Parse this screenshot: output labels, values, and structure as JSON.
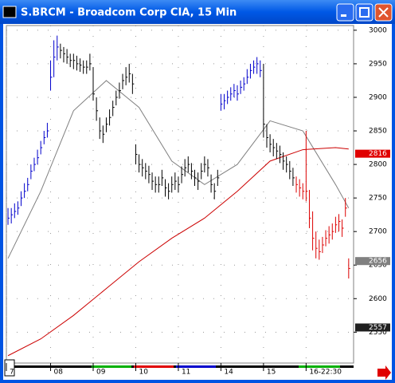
{
  "window": {
    "title": "S.BRCM - Broadcom Corp CIA, 15 Min"
  },
  "chart_data": {
    "type": "ohlc",
    "xlim": [
      -0.5,
      105.5
    ],
    "ylim": [
      2504,
      3007
    ],
    "yticks": [
      3000,
      2950,
      2900,
      2850,
      2800,
      2750,
      2700,
      2650,
      2600,
      2550
    ],
    "xticks": [
      {
        "value": -0.5,
        "label": "7"
      },
      {
        "value": 13,
        "label": "08"
      },
      {
        "value": 26,
        "label": "09"
      },
      {
        "value": 39,
        "label": "10"
      },
      {
        "value": 52,
        "label": "11"
      },
      {
        "value": 65,
        "label": "14"
      },
      {
        "value": 78,
        "label": "15"
      },
      {
        "value": 91,
        "label": "16-22:30"
      }
    ],
    "grid": true,
    "series": [
      {
        "color": "#0000cc",
        "x": [
          0,
          1,
          2,
          3,
          4,
          5,
          6,
          7,
          8,
          9,
          10,
          11,
          12,
          13,
          14,
          15,
          65,
          66,
          67,
          68,
          69,
          70,
          71,
          72,
          73,
          74,
          75,
          76,
          77
        ],
        "high": [
          2735,
          2735,
          2742,
          2745,
          2760,
          2772,
          2780,
          2800,
          2810,
          2822,
          2835,
          2850,
          2862,
          2955,
          2985,
          2992,
          2905,
          2905,
          2910,
          2915,
          2920,
          2918,
          2925,
          2930,
          2942,
          2950,
          2955,
          2960,
          2955
        ],
        "low": [
          2710,
          2712,
          2720,
          2725,
          2738,
          2750,
          2760,
          2778,
          2790,
          2800,
          2815,
          2830,
          2840,
          2910,
          2930,
          2955,
          2880,
          2882,
          2890,
          2895,
          2900,
          2895,
          2905,
          2910,
          2920,
          2928,
          2935,
          2935,
          2930
        ],
        "close": [
          2720,
          2725,
          2730,
          2735,
          2750,
          2760,
          2770,
          2790,
          2800,
          2810,
          2825,
          2840,
          2850,
          2930,
          2960,
          2975,
          2890,
          2895,
          2900,
          2905,
          2910,
          2905,
          2915,
          2920,
          2930,
          2940,
          2945,
          2950,
          2940
        ]
      },
      {
        "color": "#000000",
        "x": [
          16,
          17,
          18,
          19,
          20,
          21,
          22,
          23,
          24,
          25,
          26,
          27,
          28,
          29,
          30,
          31,
          32,
          33,
          34,
          35,
          36,
          37,
          38,
          39,
          40,
          41,
          42,
          43,
          44,
          45,
          46,
          47,
          48,
          49,
          50,
          51,
          52,
          53,
          54,
          55,
          56,
          57,
          58,
          59,
          60,
          61,
          62,
          63,
          64,
          78,
          79,
          80,
          81,
          82,
          83,
          84,
          85,
          86,
          87
        ],
        "high": [
          2980,
          2975,
          2972,
          2965,
          2965,
          2962,
          2958,
          2955,
          2955,
          2965,
          2945,
          2900,
          2870,
          2858,
          2870,
          2882,
          2895,
          2910,
          2922,
          2935,
          2945,
          2950,
          2935,
          2830,
          2815,
          2808,
          2802,
          2798,
          2788,
          2782,
          2782,
          2792,
          2778,
          2772,
          2782,
          2788,
          2782,
          2797,
          2808,
          2812,
          2802,
          2792,
          2788,
          2802,
          2812,
          2808,
          2785,
          2772,
          2792,
          2950,
          2860,
          2845,
          2838,
          2832,
          2828,
          2818,
          2812,
          2805,
          2795
        ],
        "low": [
          2958,
          2952,
          2950,
          2945,
          2942,
          2940,
          2938,
          2935,
          2935,
          2940,
          2895,
          2865,
          2838,
          2832,
          2848,
          2858,
          2872,
          2888,
          2898,
          2912,
          2918,
          2922,
          2905,
          2800,
          2788,
          2782,
          2778,
          2772,
          2762,
          2758,
          2758,
          2768,
          2752,
          2748,
          2758,
          2762,
          2758,
          2772,
          2782,
          2788,
          2778,
          2768,
          2762,
          2778,
          2788,
          2782,
          2758,
          2748,
          2768,
          2840,
          2825,
          2818,
          2812,
          2808,
          2802,
          2792,
          2788,
          2778,
          2768
        ],
        "close": [
          2970,
          2965,
          2960,
          2955,
          2955,
          2950,
          2948,
          2945,
          2945,
          2950,
          2905,
          2880,
          2850,
          2845,
          2860,
          2870,
          2885,
          2900,
          2910,
          2925,
          2930,
          2935,
          2920,
          2815,
          2800,
          2795,
          2790,
          2785,
          2775,
          2770,
          2770,
          2780,
          2765,
          2760,
          2770,
          2775,
          2770,
          2785,
          2795,
          2800,
          2790,
          2780,
          2775,
          2790,
          2800,
          2795,
          2770,
          2760,
          2780,
          2860,
          2840,
          2830,
          2825,
          2820,
          2815,
          2805,
          2800,
          2790,
          2780
        ]
      },
      {
        "color": "#dd0000",
        "x": [
          88,
          89,
          90,
          91,
          92,
          93,
          94,
          95,
          96,
          97,
          98,
          99,
          100,
          101,
          102,
          103,
          104
        ],
        "high": [
          2782,
          2778,
          2772,
          2850,
          2762,
          2730,
          2700,
          2688,
          2692,
          2702,
          2708,
          2712,
          2722,
          2726,
          2718,
          2750,
          2660
        ],
        "low": [
          2758,
          2752,
          2748,
          2745,
          2705,
          2672,
          2660,
          2658,
          2668,
          2678,
          2682,
          2688,
          2698,
          2700,
          2692,
          2722,
          2630
        ],
        "close": [
          2770,
          2765,
          2760,
          2760,
          2720,
          2690,
          2675,
          2670,
          2680,
          2690,
          2695,
          2700,
          2710,
          2715,
          2705,
          2735,
          2645
        ]
      }
    ],
    "averages": [
      {
        "color": "#808080",
        "x": [
          0,
          10,
          20,
          30,
          40,
          50,
          60,
          70,
          80,
          90,
          100,
          104
        ],
        "values": [
          2660,
          2760,
          2880,
          2925,
          2885,
          2805,
          2770,
          2800,
          2865,
          2850,
          2770,
          2735
        ]
      },
      {
        "color": "#cc0000",
        "x": [
          0,
          10,
          20,
          30,
          40,
          50,
          60,
          70,
          80,
          90,
          100,
          104
        ],
        "values": [
          2515,
          2540,
          2575,
          2615,
          2655,
          2690,
          2720,
          2760,
          2805,
          2822,
          2825,
          2823
        ]
      }
    ],
    "price_markers": [
      {
        "value": 2816,
        "color": "#e00000"
      },
      {
        "value": 2656,
        "color": "#808080"
      },
      {
        "value": 2557,
        "color": "#202020"
      }
    ]
  }
}
